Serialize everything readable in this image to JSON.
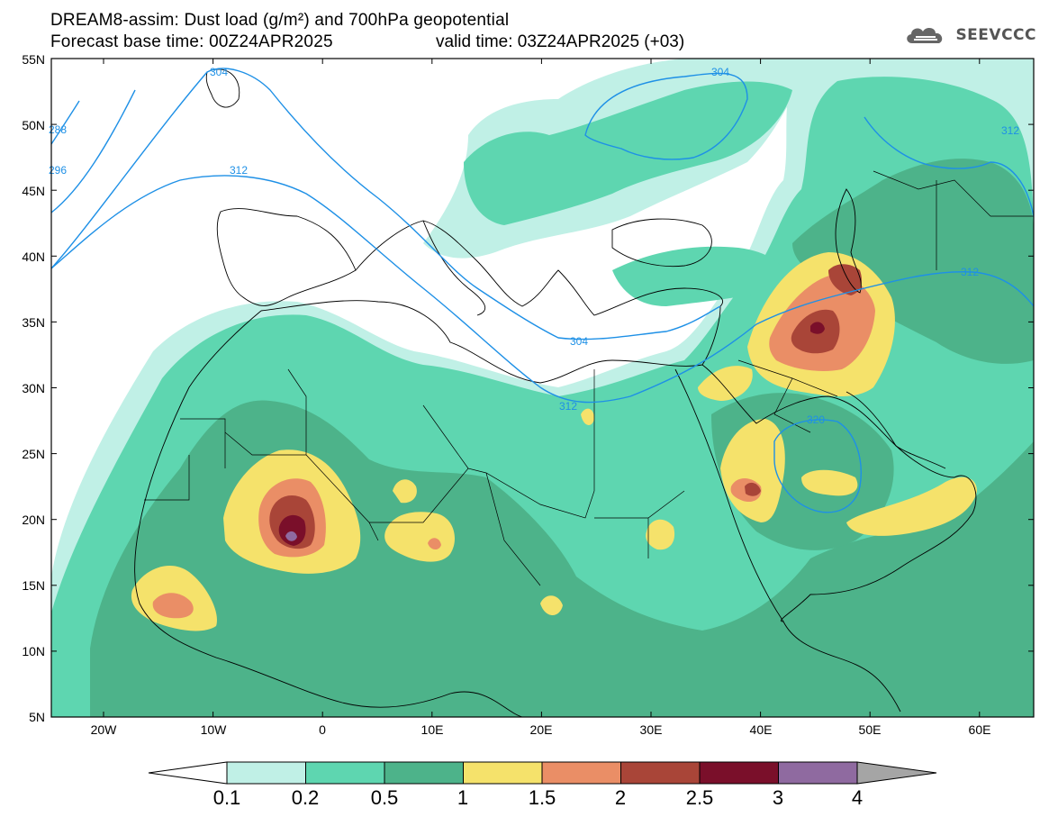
{
  "header": {
    "title": "DREAM8-assim: Dust load (g/m²) and 700hPa geopotential",
    "base_time": "Forecast base time: 00Z24APR2025",
    "valid_time": "valid time: 03Z24APR2025 (+03)"
  },
  "logo": {
    "text": "SEEVCCC",
    "icon": "cloud-icon"
  },
  "map": {
    "lat_labels": [
      "55N",
      "50N",
      "45N",
      "40N",
      "35N",
      "30N",
      "25N",
      "20N",
      "15N",
      "10N",
      "5N"
    ],
    "lon_labels": [
      "20W",
      "10W",
      "0",
      "10E",
      "20E",
      "30E",
      "40E",
      "50E",
      "60E"
    ],
    "contour_labels": [
      "304",
      "304",
      "288",
      "296",
      "312",
      "312",
      "304",
      "312",
      "320",
      "312"
    ]
  },
  "colorbar": {
    "ticks": [
      "0.1",
      "0.2",
      "0.5",
      "1",
      "1.5",
      "2",
      "2.5",
      "3",
      "4"
    ],
    "colors": [
      "#c0f0e6",
      "#5ed6b0",
      "#4db38a",
      "#f5e26b",
      "#ea8e66",
      "#a94538",
      "#7a0f2a",
      "#8f6aa0",
      "#a5a5a5"
    ]
  }
}
